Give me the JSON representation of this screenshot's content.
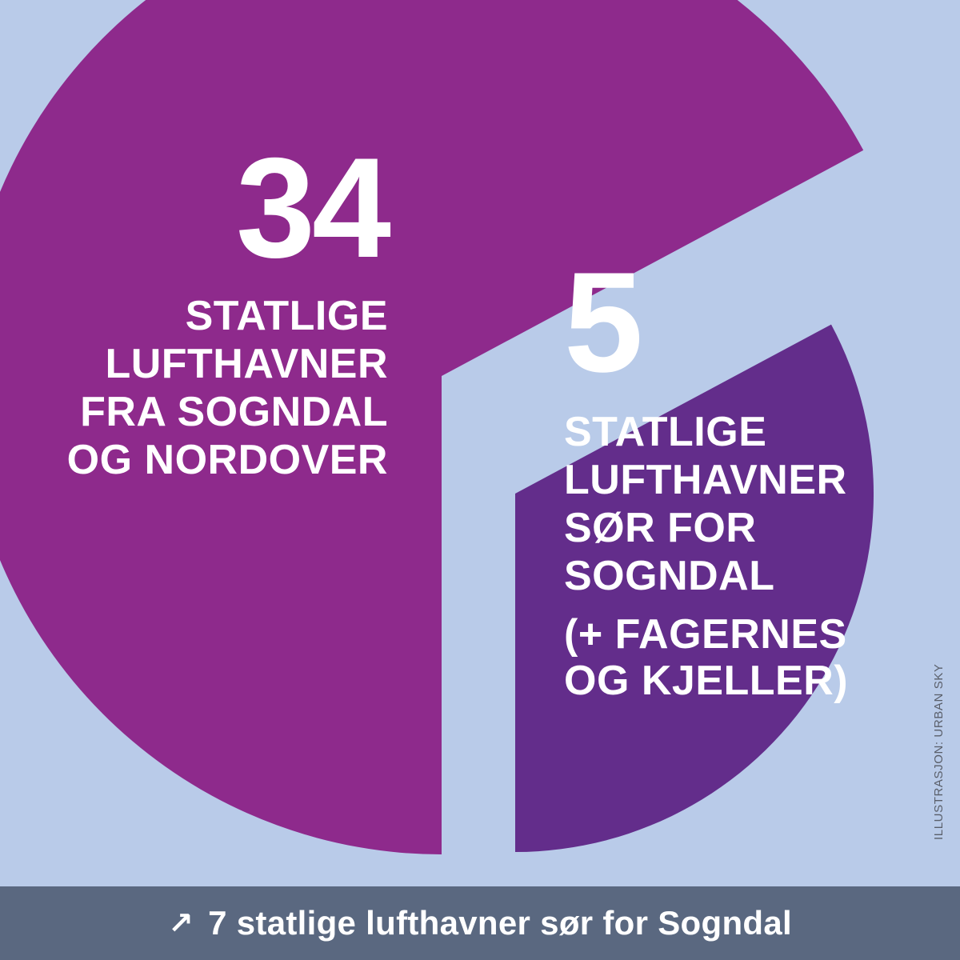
{
  "chart_data": {
    "type": "pie",
    "title": "",
    "slices": [
      {
        "name": "STATLIGE LUFTHAVNER FRA SOGNDAL OG NORDOVER",
        "value": 34,
        "color": "#8e2a8c"
      },
      {
        "name": "STATLIGE LUFTHAVNER SØR FOR SOGNDAL",
        "value": 5,
        "color": "#632d8b"
      }
    ]
  },
  "labels": {
    "big": {
      "number": "34",
      "lines": [
        "STATLIGE",
        "LUFTHAVNER",
        "FRA SOGNDAL",
        "OG NORDOVER"
      ]
    },
    "small": {
      "number": "5",
      "lines": [
        "STATLIGE",
        "LUFTHAVNER",
        "SØR FOR",
        "SOGNDAL"
      ],
      "note_lines": [
        "(+ FAGERNES",
        "OG KJELLER)"
      ]
    }
  },
  "credit": "ILLUSTRASJON: URBAN SKY",
  "footer": {
    "icon": "arrow-up-right-icon",
    "text": "7 statlige lufthavner sør for Sogndal"
  },
  "colors": {
    "background": "#b9cbe9",
    "footer_bg": "#5a6880",
    "text": "#ffffff"
  }
}
